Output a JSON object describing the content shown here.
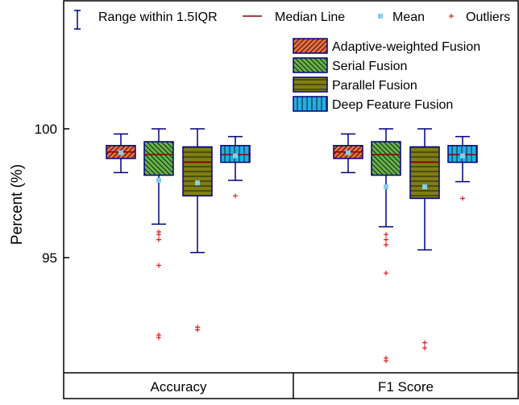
{
  "chart_data": {
    "type": "box",
    "ylabel": "Percent (%)",
    "ylim": [
      90.5,
      105
    ],
    "yticks": [
      95,
      100
    ],
    "grid": false,
    "categories": [
      "Accuracy",
      "F1 Score"
    ],
    "top_legend": {
      "range": "Range within 1.5IQR",
      "median": "Median Line",
      "mean": "Mean",
      "outliers": "Outliers"
    },
    "legend_position": "top-right",
    "colors": {
      "axis": "#000000",
      "whisker": "#000080",
      "median": "#8b0000",
      "mean": "#87ceeb",
      "outlier": "#e02020"
    },
    "series": [
      {
        "name": "Adaptive-weighted Fusion",
        "color": "#f26c3a",
        "pattern": "diag-right"
      },
      {
        "name": "Serial Fusion",
        "color": "#64b446",
        "pattern": "diag-left"
      },
      {
        "name": "Parallel Fusion",
        "color": "#7f7f10",
        "pattern": "horizontal"
      },
      {
        "name": "Deep Feature Fusion",
        "color": "#22aee6",
        "pattern": "vertical"
      }
    ],
    "boxes": [
      {
        "category": "Accuracy",
        "series": "Adaptive-weighted Fusion",
        "whisker_low": 98.3,
        "q1": 98.85,
        "median": 99.1,
        "q3": 99.35,
        "whisker_high": 99.8,
        "mean": 99.07,
        "outliers": []
      },
      {
        "category": "Accuracy",
        "series": "Serial Fusion",
        "whisker_low": 96.3,
        "q1": 98.2,
        "median": 99.0,
        "q3": 99.5,
        "whisker_high": 100.0,
        "mean": 98.0,
        "outliers": [
          96.0,
          95.9,
          95.7,
          94.7,
          92.0,
          91.9
        ]
      },
      {
        "category": "Accuracy",
        "series": "Parallel Fusion",
        "whisker_low": 95.2,
        "q1": 97.4,
        "median": 98.7,
        "q3": 99.3,
        "whisker_high": 100.0,
        "mean": 97.9,
        "outliers": [
          92.3,
          92.2
        ]
      },
      {
        "category": "Accuracy",
        "series": "Deep Feature Fusion",
        "whisker_low": 98.0,
        "q1": 98.7,
        "median": 99.0,
        "q3": 99.35,
        "whisker_high": 99.7,
        "mean": 98.95,
        "outliers": [
          97.4
        ]
      },
      {
        "category": "F1 Score",
        "series": "Adaptive-weighted Fusion",
        "whisker_low": 98.3,
        "q1": 98.85,
        "median": 99.1,
        "q3": 99.35,
        "whisker_high": 99.8,
        "mean": 99.07,
        "outliers": []
      },
      {
        "category": "F1 Score",
        "series": "Serial Fusion",
        "whisker_low": 96.2,
        "q1": 98.2,
        "median": 99.0,
        "q3": 99.5,
        "whisker_high": 100.0,
        "mean": 97.75,
        "outliers": [
          95.9,
          95.7,
          95.5,
          94.4,
          91.1,
          91.0
        ]
      },
      {
        "category": "F1 Score",
        "series": "Parallel Fusion",
        "whisker_low": 95.3,
        "q1": 97.3,
        "median": 98.7,
        "q3": 99.3,
        "whisker_high": 100.0,
        "mean": 97.75,
        "outliers": [
          91.7,
          91.5
        ]
      },
      {
        "category": "F1 Score",
        "series": "Deep Feature Fusion",
        "whisker_low": 97.95,
        "q1": 98.7,
        "median": 99.0,
        "q3": 99.35,
        "whisker_high": 99.7,
        "mean": 98.95,
        "outliers": [
          97.3
        ]
      }
    ]
  }
}
